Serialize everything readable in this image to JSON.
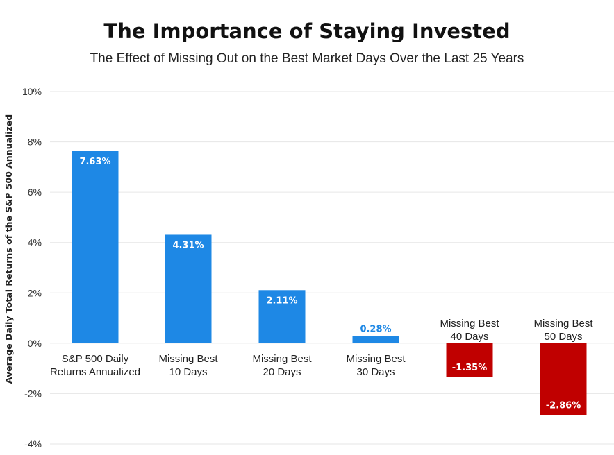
{
  "colors": {
    "positive": "#1e88e5",
    "negative": "#c00000",
    "grid": "#e6e6e6"
  },
  "chart_data": {
    "type": "bar",
    "title": "The Importance of Staying Invested",
    "subtitle": "The Effect of Missing Out on the Best Market Days Over the Last 25 Years",
    "xlabel": "",
    "ylabel": "Average Daily Total Returns of the S&P 500 Annualized",
    "ylim": [
      -4,
      10
    ],
    "yticks": [
      10,
      8,
      6,
      4,
      2,
      0,
      -2,
      -4
    ],
    "ytick_labels": [
      "10%",
      "8%",
      "6%",
      "4%",
      "2%",
      "0%",
      "-2%",
      "-4%"
    ],
    "grid": true,
    "legend": "none",
    "categories": [
      [
        "S&P 500 Daily",
        "Returns Annualized"
      ],
      [
        "Missing Best",
        "10 Days"
      ],
      [
        "Missing Best",
        "20 Days"
      ],
      [
        "Missing Best",
        "30 Days"
      ],
      [
        "Missing Best",
        "40 Days"
      ],
      [
        "Missing Best",
        "50 Days"
      ]
    ],
    "values": [
      7.63,
      4.31,
      2.11,
      0.28,
      -1.35,
      -2.86
    ],
    "data_labels": [
      "7.63%",
      "4.31%",
      "2.11%",
      "0.28%",
      "-1.35%",
      "-2.86%"
    ]
  }
}
